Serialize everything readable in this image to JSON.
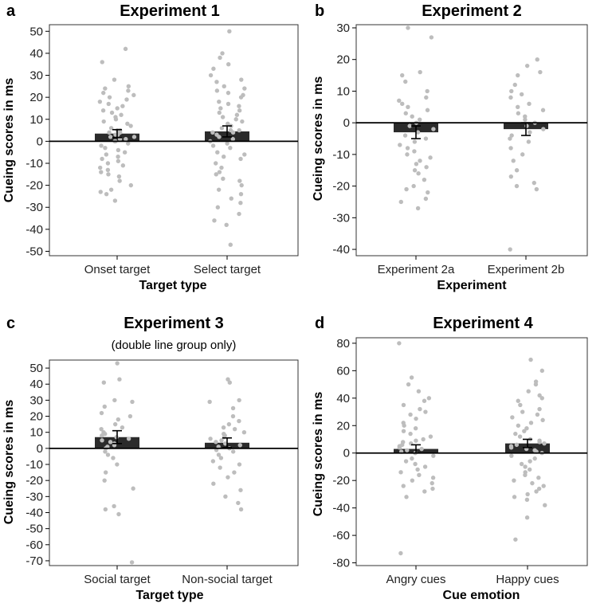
{
  "chart_data": [
    {
      "type": "bar",
      "letter": "a",
      "title": "Experiment 1",
      "subtitle": "",
      "xlabel": "Target type",
      "ylabel": "Cueing scores in ms",
      "ylim": [
        -52,
        53
      ],
      "yticks": [
        50,
        40,
        30,
        20,
        10,
        0,
        -10,
        -20,
        -30,
        -40,
        -50
      ],
      "categories": [
        "Onset target",
        "Select target"
      ],
      "values": [
        3.5,
        4.5
      ],
      "errors": [
        1.8,
        2.5
      ],
      "points": [
        [
          42,
          36,
          28,
          25,
          24,
          23,
          22,
          21,
          20,
          19,
          18,
          17,
          16,
          15,
          14,
          13,
          12,
          11,
          10,
          9,
          8,
          7,
          6,
          5,
          5,
          4,
          4,
          3,
          3,
          2,
          2,
          1,
          1,
          0,
          0,
          -1,
          -2,
          -3,
          -4,
          -5,
          -6,
          -7,
          -8,
          -9,
          -10,
          -11,
          -12,
          -13,
          -14,
          -15,
          -16,
          -18,
          -20,
          -22,
          -23,
          -24,
          -27
        ],
        [
          50,
          40,
          38,
          35,
          33,
          30,
          28,
          27,
          25,
          24,
          23,
          22,
          21,
          20,
          18,
          17,
          16,
          15,
          14,
          13,
          12,
          11,
          10,
          9,
          8,
          7,
          6,
          5,
          5,
          4,
          4,
          3,
          2,
          1,
          0,
          -1,
          -2,
          -3,
          -5,
          -6,
          -7,
          -8,
          -10,
          -12,
          -14,
          -15,
          -17,
          -18,
          -20,
          -22,
          -24,
          -26,
          -28,
          -30,
          -33,
          -36,
          -38,
          -47
        ]
      ]
    },
    {
      "type": "bar",
      "letter": "b",
      "title": "Experiment 2",
      "subtitle": "",
      "xlabel": "Experiment",
      "ylabel": "Cueing scores in ms",
      "ylim": [
        -42,
        31
      ],
      "yticks": [
        30,
        20,
        10,
        0,
        -10,
        -20,
        -30,
        -40
      ],
      "categories": [
        "Experiment 2a",
        "Experiment 2b"
      ],
      "values": [
        -3,
        -2
      ],
      "errors": [
        2,
        2
      ],
      "points": [
        [
          30,
          27,
          16,
          15,
          13,
          10,
          8,
          7,
          6,
          5,
          4,
          3,
          2,
          1,
          0,
          -1,
          -2,
          -3,
          -4,
          -5,
          -6,
          -7,
          -8,
          -9,
          -10,
          -11,
          -12,
          -13,
          -14,
          -15,
          -16,
          -18,
          -20,
          -21,
          -22,
          -24,
          -25,
          -27
        ],
        [
          20,
          18,
          16,
          15,
          12,
          10,
          9,
          8,
          6,
          5,
          4,
          3,
          2,
          1,
          0,
          -1,
          -2,
          -3,
          -4,
          -5,
          -6,
          -8,
          -10,
          -12,
          -15,
          -17,
          -19,
          -20,
          -21,
          -40
        ]
      ]
    },
    {
      "type": "bar",
      "letter": "c",
      "title": "Experiment 3",
      "subtitle": "(double line group only)",
      "xlabel": "Target type",
      "ylabel": "Cueing scores in ms",
      "ylim": [
        -73,
        55
      ],
      "yticks": [
        50,
        40,
        30,
        20,
        10,
        0,
        -10,
        -20,
        -30,
        -40,
        -50,
        -60,
        -70
      ],
      "categories": [
        "Social target",
        "Non-social target"
      ],
      "values": [
        7,
        3.5
      ],
      "errors": [
        4,
        3
      ],
      "points": [
        [
          53,
          43,
          41,
          30,
          29,
          26,
          22,
          20,
          18,
          15,
          13,
          12,
          10,
          9,
          8,
          7,
          6,
          5,
          4,
          3,
          2,
          1,
          0,
          -2,
          -4,
          -6,
          -10,
          -15,
          -20,
          -25,
          -36,
          -38,
          -41,
          -71
        ],
        [
          43,
          41,
          30,
          29,
          25,
          20,
          17,
          15,
          13,
          12,
          10,
          9,
          8,
          7,
          6,
          5,
          4,
          3,
          2,
          1,
          0,
          -1,
          -2,
          -4,
          -6,
          -8,
          -10,
          -12,
          -15,
          -18,
          -22,
          -26,
          -30,
          -34,
          -38
        ]
      ]
    },
    {
      "type": "bar",
      "letter": "d",
      "title": "Experiment 4",
      "subtitle": "",
      "xlabel": "Cue emotion",
      "ylabel": "Cueing scores in ms",
      "ylim": [
        -82,
        84
      ],
      "yticks": [
        80,
        60,
        40,
        20,
        0,
        -20,
        -40,
        -60,
        -80
      ],
      "categories": [
        "Angry cues",
        "Happy cues"
      ],
      "values": [
        3,
        7
      ],
      "errors": [
        3,
        3
      ],
      "points": [
        [
          80,
          55,
          50,
          45,
          40,
          38,
          35,
          32,
          30,
          28,
          25,
          22,
          20,
          18,
          16,
          14,
          12,
          10,
          9,
          8,
          7,
          6,
          5,
          4,
          3,
          2,
          1,
          0,
          -2,
          -4,
          -6,
          -8,
          -10,
          -12,
          -14,
          -16,
          -18,
          -20,
          -22,
          -24,
          -26,
          -28,
          -32,
          -73
        ],
        [
          68,
          60,
          52,
          50,
          45,
          42,
          40,
          38,
          35,
          32,
          30,
          28,
          26,
          24,
          22,
          20,
          18,
          16,
          14,
          12,
          10,
          9,
          8,
          7,
          6,
          5,
          4,
          3,
          2,
          1,
          0,
          -2,
          -4,
          -6,
          -8,
          -10,
          -12,
          -14,
          -16,
          -18,
          -20,
          -22,
          -24,
          -26,
          -28,
          -30,
          -32,
          -34,
          -38,
          -47,
          -63
        ]
      ]
    }
  ],
  "colors": {
    "bar": "#2b2b2b",
    "point": "#bdbdbd",
    "axis": "#000000",
    "frame": "#333333"
  }
}
